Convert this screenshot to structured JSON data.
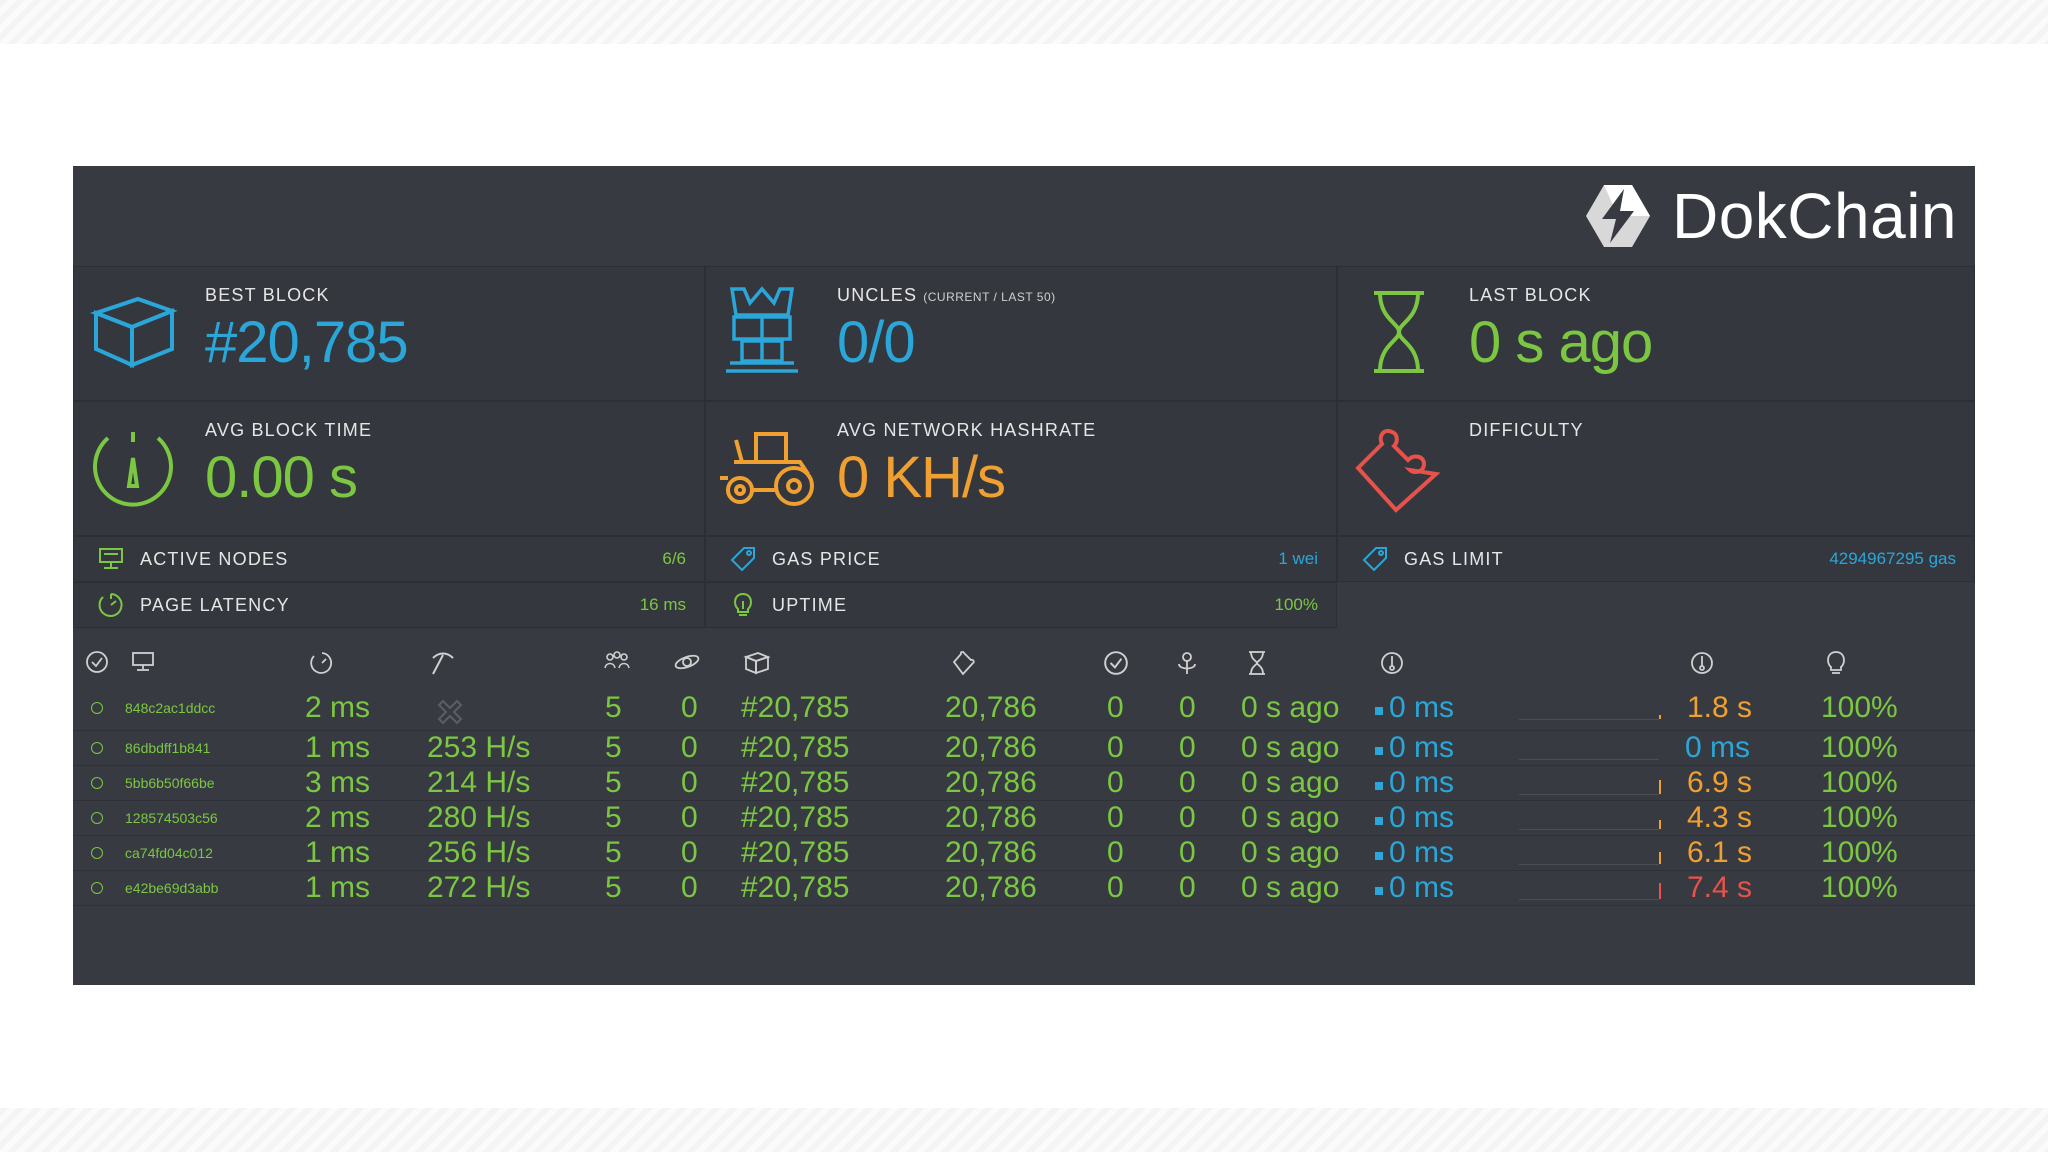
{
  "brand": {
    "name": "DokChain"
  },
  "colors": {
    "blue": "#2aa6d8",
    "green": "#7bc742",
    "orange": "#f0a030",
    "red": "#e8524a"
  },
  "stats": {
    "best_block": {
      "label": "Best Block",
      "value": "#20,785",
      "icon": "cube-icon"
    },
    "uncles": {
      "label": "Uncles",
      "sub": "(CURRENT / LAST 50)",
      "value": "0/0",
      "icon": "robot-icon"
    },
    "last_block": {
      "label": "Last Block",
      "value": "0 s ago",
      "icon": "hourglass-icon"
    },
    "avg_block_time": {
      "label": "Avg Block Time",
      "value": "0.00 s",
      "icon": "gauge-icon"
    },
    "avg_hashrate": {
      "label": "Avg Network Hashrate",
      "value": "0 KH/s",
      "icon": "tractor-icon"
    },
    "difficulty": {
      "label": "Difficulty",
      "value": "",
      "icon": "puzzle-icon"
    }
  },
  "info": {
    "active_nodes": {
      "label": "Active Nodes",
      "value": "6/6"
    },
    "gas_price": {
      "label": "Gas Price",
      "value": "1 wei"
    },
    "gas_limit": {
      "label": "Gas Limit",
      "value": "4294967295 gas"
    },
    "page_latency": {
      "label": "Page Latency",
      "value": "16 ms"
    },
    "uptime": {
      "label": "Uptime",
      "value": "100%"
    }
  },
  "table": {
    "header_icons": [
      "check-circle-icon",
      "monitor-icon",
      "latency-icon",
      "pickaxe-icon",
      "peers-icon",
      "pending-icon",
      "block-icon",
      "difficulty-tag-icon",
      "check-circle-icon",
      "uncles-icon",
      "hourglass-icon",
      "propagation-icon",
      "block-time-icon",
      "uptime-icon"
    ],
    "rows": [
      {
        "name": "848c2ac1ddcc",
        "latency": "2 ms",
        "hashrate": "",
        "peers": "5",
        "pending": "0",
        "block": "#20,785",
        "difficulty": "20,786",
        "txs": "0",
        "uncles": "0",
        "last": "0 s ago",
        "prop": "0 ms",
        "avg_prop": "1.8 s",
        "avg_color": "orange",
        "uptime": "100%",
        "spark_h": 0.2
      },
      {
        "name": "86dbdff1b841",
        "latency": "1 ms",
        "hashrate": "253 H/s",
        "peers": "5",
        "pending": "0",
        "block": "#20,785",
        "difficulty": "20,786",
        "txs": "0",
        "uncles": "0",
        "last": "0 s ago",
        "prop": "0 ms",
        "avg_prop": "0 ms",
        "avg_color": "blue",
        "uptime": "100%",
        "spark_h": 0
      },
      {
        "name": "5bb6b50f66be",
        "latency": "3 ms",
        "hashrate": "214 H/s",
        "peers": "5",
        "pending": "0",
        "block": "#20,785",
        "difficulty": "20,786",
        "txs": "0",
        "uncles": "0",
        "last": "0 s ago",
        "prop": "0 ms",
        "avg_prop": "6.9 s",
        "avg_color": "orange",
        "uptime": "100%",
        "spark_h": 0.7
      },
      {
        "name": "128574503c56",
        "latency": "2 ms",
        "hashrate": "280 H/s",
        "peers": "5",
        "pending": "0",
        "block": "#20,785",
        "difficulty": "20,786",
        "txs": "0",
        "uncles": "0",
        "last": "0 s ago",
        "prop": "0 ms",
        "avg_prop": "4.3 s",
        "avg_color": "orange",
        "uptime": "100%",
        "spark_h": 0.45
      },
      {
        "name": "ca74fd04c012",
        "latency": "1 ms",
        "hashrate": "256 H/s",
        "peers": "5",
        "pending": "0",
        "block": "#20,785",
        "difficulty": "20,786",
        "txs": "0",
        "uncles": "0",
        "last": "0 s ago",
        "prop": "0 ms",
        "avg_prop": "6.1 s",
        "avg_color": "orange",
        "uptime": "100%",
        "spark_h": 0.6
      },
      {
        "name": "e42be69d3abb",
        "latency": "1 ms",
        "hashrate": "272 H/s",
        "peers": "5",
        "pending": "0",
        "block": "#20,785",
        "difficulty": "20,786",
        "txs": "0",
        "uncles": "0",
        "last": "0 s ago",
        "prop": "0 ms",
        "avg_prop": "7.4 s",
        "avg_color": "red",
        "uptime": "100%",
        "spark_h": 0.8
      }
    ]
  }
}
